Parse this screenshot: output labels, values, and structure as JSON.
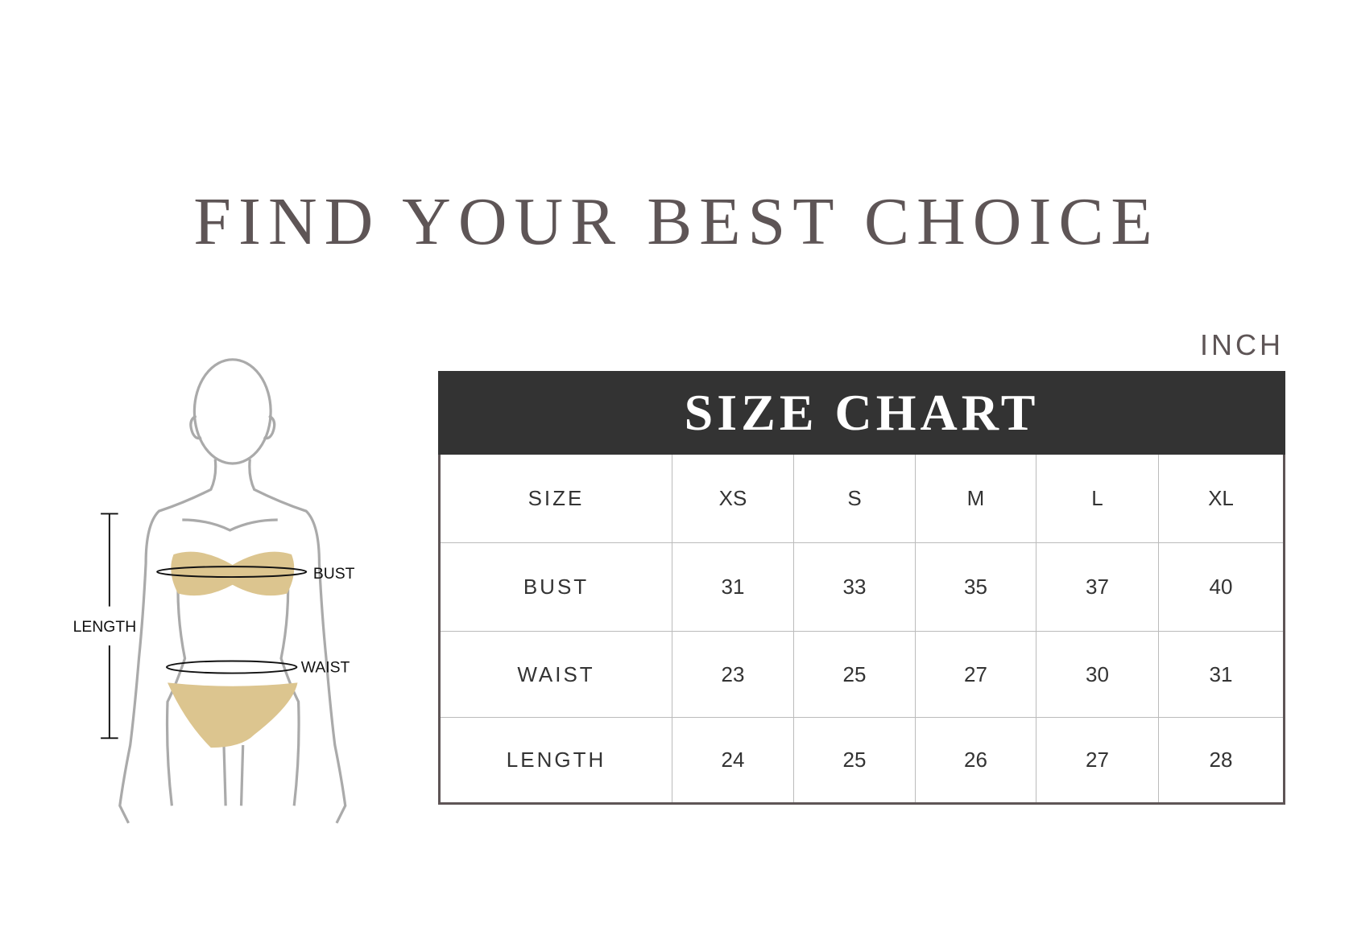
{
  "title": "FIND YOUR BEST CHOICE",
  "unit": "INCH",
  "figure": {
    "labels": {
      "bust": "BUST",
      "waist": "WAIST",
      "length": "LENGTH"
    },
    "garment_color": "#dcc58f"
  },
  "size_chart": {
    "heading": "SIZE CHART",
    "header": {
      "label": "SIZE",
      "sizes": [
        "XS",
        "S",
        "M",
        "L",
        "XL"
      ]
    },
    "rows": [
      {
        "label": "BUST",
        "values": [
          "31",
          "33",
          "35",
          "37",
          "40"
        ]
      },
      {
        "label": "WAIST",
        "values": [
          "23",
          "25",
          "27",
          "30",
          "31"
        ]
      },
      {
        "label": "LENGTH",
        "values": [
          "24",
          "25",
          "26",
          "27",
          "28"
        ]
      }
    ]
  }
}
